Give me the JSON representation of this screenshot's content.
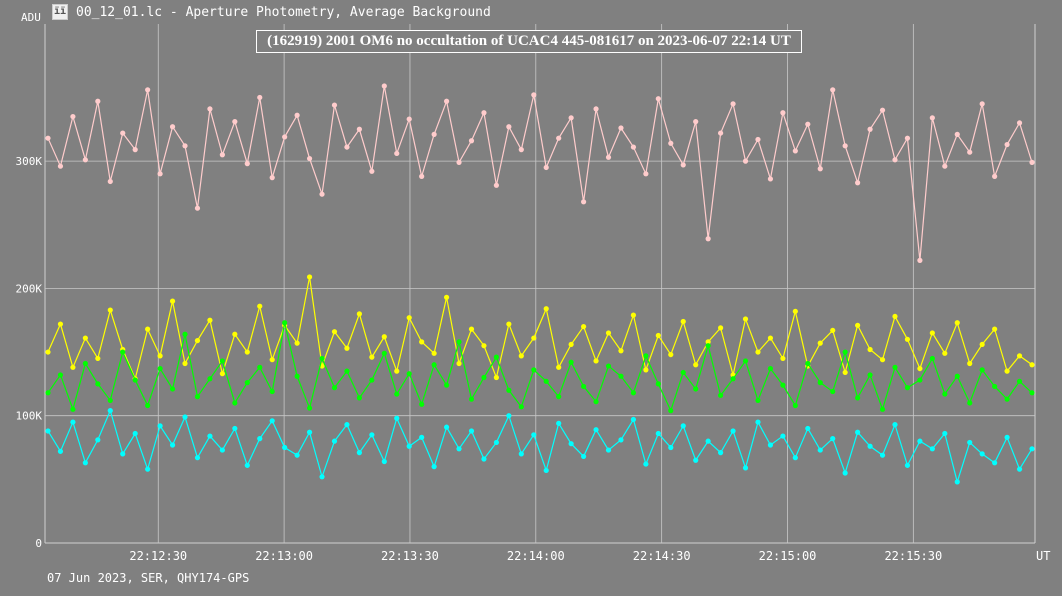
{
  "window": {
    "title": "00_12_01.lc - Aperture Photometry, Average Background",
    "icon": "app-logo-icon"
  },
  "footer": "07 Jun 2023, SER, QHY174-GPS",
  "chart_data": {
    "type": "line",
    "title": "(162919) 2001 OM6 no occultation of UCAC4 445-081617 on 2023-06-07  22:14 UT",
    "ylabel": "ADU",
    "xlabel": "UT",
    "ylim": [
      0,
      390
    ],
    "y_ticks": [
      {
        "v": 0,
        "label": "0"
      },
      {
        "v": 100,
        "label": "100K"
      },
      {
        "v": 200,
        "label": "200K"
      },
      {
        "v": 300,
        "label": "300K"
      }
    ],
    "xlim": [
      "22:12:03",
      "22:15:59"
    ],
    "x_ticks": [
      "22:12:30",
      "22:13:00",
      "22:13:30",
      "22:14:00",
      "22:14:30",
      "22:15:00",
      "22:15:30"
    ],
    "grid": true,
    "x_start": "22:12:03",
    "x_end": "22:15:59",
    "series": [
      {
        "color": "#ffcccc",
        "values": [
          318,
          296,
          335,
          301,
          347,
          284,
          322,
          309,
          356,
          290,
          327,
          312,
          263,
          341,
          305,
          331,
          298,
          350,
          287,
          319,
          336,
          302,
          274,
          344,
          311,
          325,
          292,
          359,
          306,
          333,
          288,
          321,
          347,
          299,
          316,
          338,
          281,
          327,
          309,
          352,
          295,
          318,
          334,
          268,
          341,
          303,
          326,
          311,
          290,
          349,
          314,
          297,
          331,
          239,
          322,
          345,
          300,
          317,
          286,
          338,
          308,
          329,
          294,
          356,
          312,
          283,
          325,
          340,
          301,
          318,
          222,
          334,
          296,
          321,
          307,
          345,
          288,
          313,
          330,
          299
        ]
      },
      {
        "color": "#ffff00",
        "values": [
          150,
          172,
          138,
          161,
          145,
          183,
          152,
          129,
          168,
          147,
          190,
          141,
          159,
          175,
          133,
          164,
          150,
          186,
          144,
          171,
          157,
          209,
          139,
          166,
          153,
          180,
          146,
          162,
          135,
          177,
          158,
          149,
          193,
          141,
          168,
          155,
          130,
          172,
          147,
          161,
          184,
          138,
          156,
          170,
          143,
          165,
          151,
          179,
          136,
          163,
          148,
          174,
          140,
          158,
          169,
          132,
          176,
          150,
          161,
          145,
          182,
          139,
          157,
          167,
          134,
          171,
          152,
          144,
          178,
          160,
          137,
          165,
          149,
          173,
          141,
          156,
          168,
          135,
          147,
          140
        ]
      },
      {
        "color": "#00ff00",
        "values": [
          118,
          132,
          105,
          141,
          125,
          112,
          150,
          128,
          108,
          137,
          121,
          164,
          115,
          129,
          143,
          110,
          126,
          138,
          119,
          173,
          131,
          106,
          145,
          122,
          135,
          114,
          128,
          149,
          117,
          133,
          109,
          140,
          124,
          158,
          113,
          130,
          146,
          120,
          107,
          136,
          127,
          115,
          142,
          123,
          111,
          139,
          131,
          118,
          147,
          125,
          104,
          134,
          121,
          155,
          116,
          129,
          143,
          112,
          137,
          124,
          108,
          141,
          126,
          119,
          150,
          114,
          132,
          105,
          138,
          122,
          128,
          145,
          117,
          131,
          110,
          136,
          123,
          113,
          127,
          118
        ]
      },
      {
        "color": "#00ffff",
        "values": [
          88,
          72,
          95,
          63,
          81,
          104,
          70,
          86,
          58,
          92,
          77,
          99,
          67,
          84,
          73,
          90,
          61,
          82,
          96,
          75,
          69,
          87,
          52,
          80,
          93,
          71,
          85,
          64,
          98,
          76,
          83,
          60,
          91,
          74,
          88,
          66,
          79,
          100,
          70,
          85,
          57,
          94,
          78,
          68,
          89,
          73,
          81,
          97,
          62,
          86,
          75,
          92,
          65,
          80,
          71,
          88,
          59,
          95,
          77,
          84,
          67,
          90,
          73,
          82,
          55,
          87,
          76,
          69,
          93,
          61,
          80,
          74,
          86,
          48,
          79,
          70,
          63,
          83,
          58,
          74
        ]
      }
    ]
  }
}
